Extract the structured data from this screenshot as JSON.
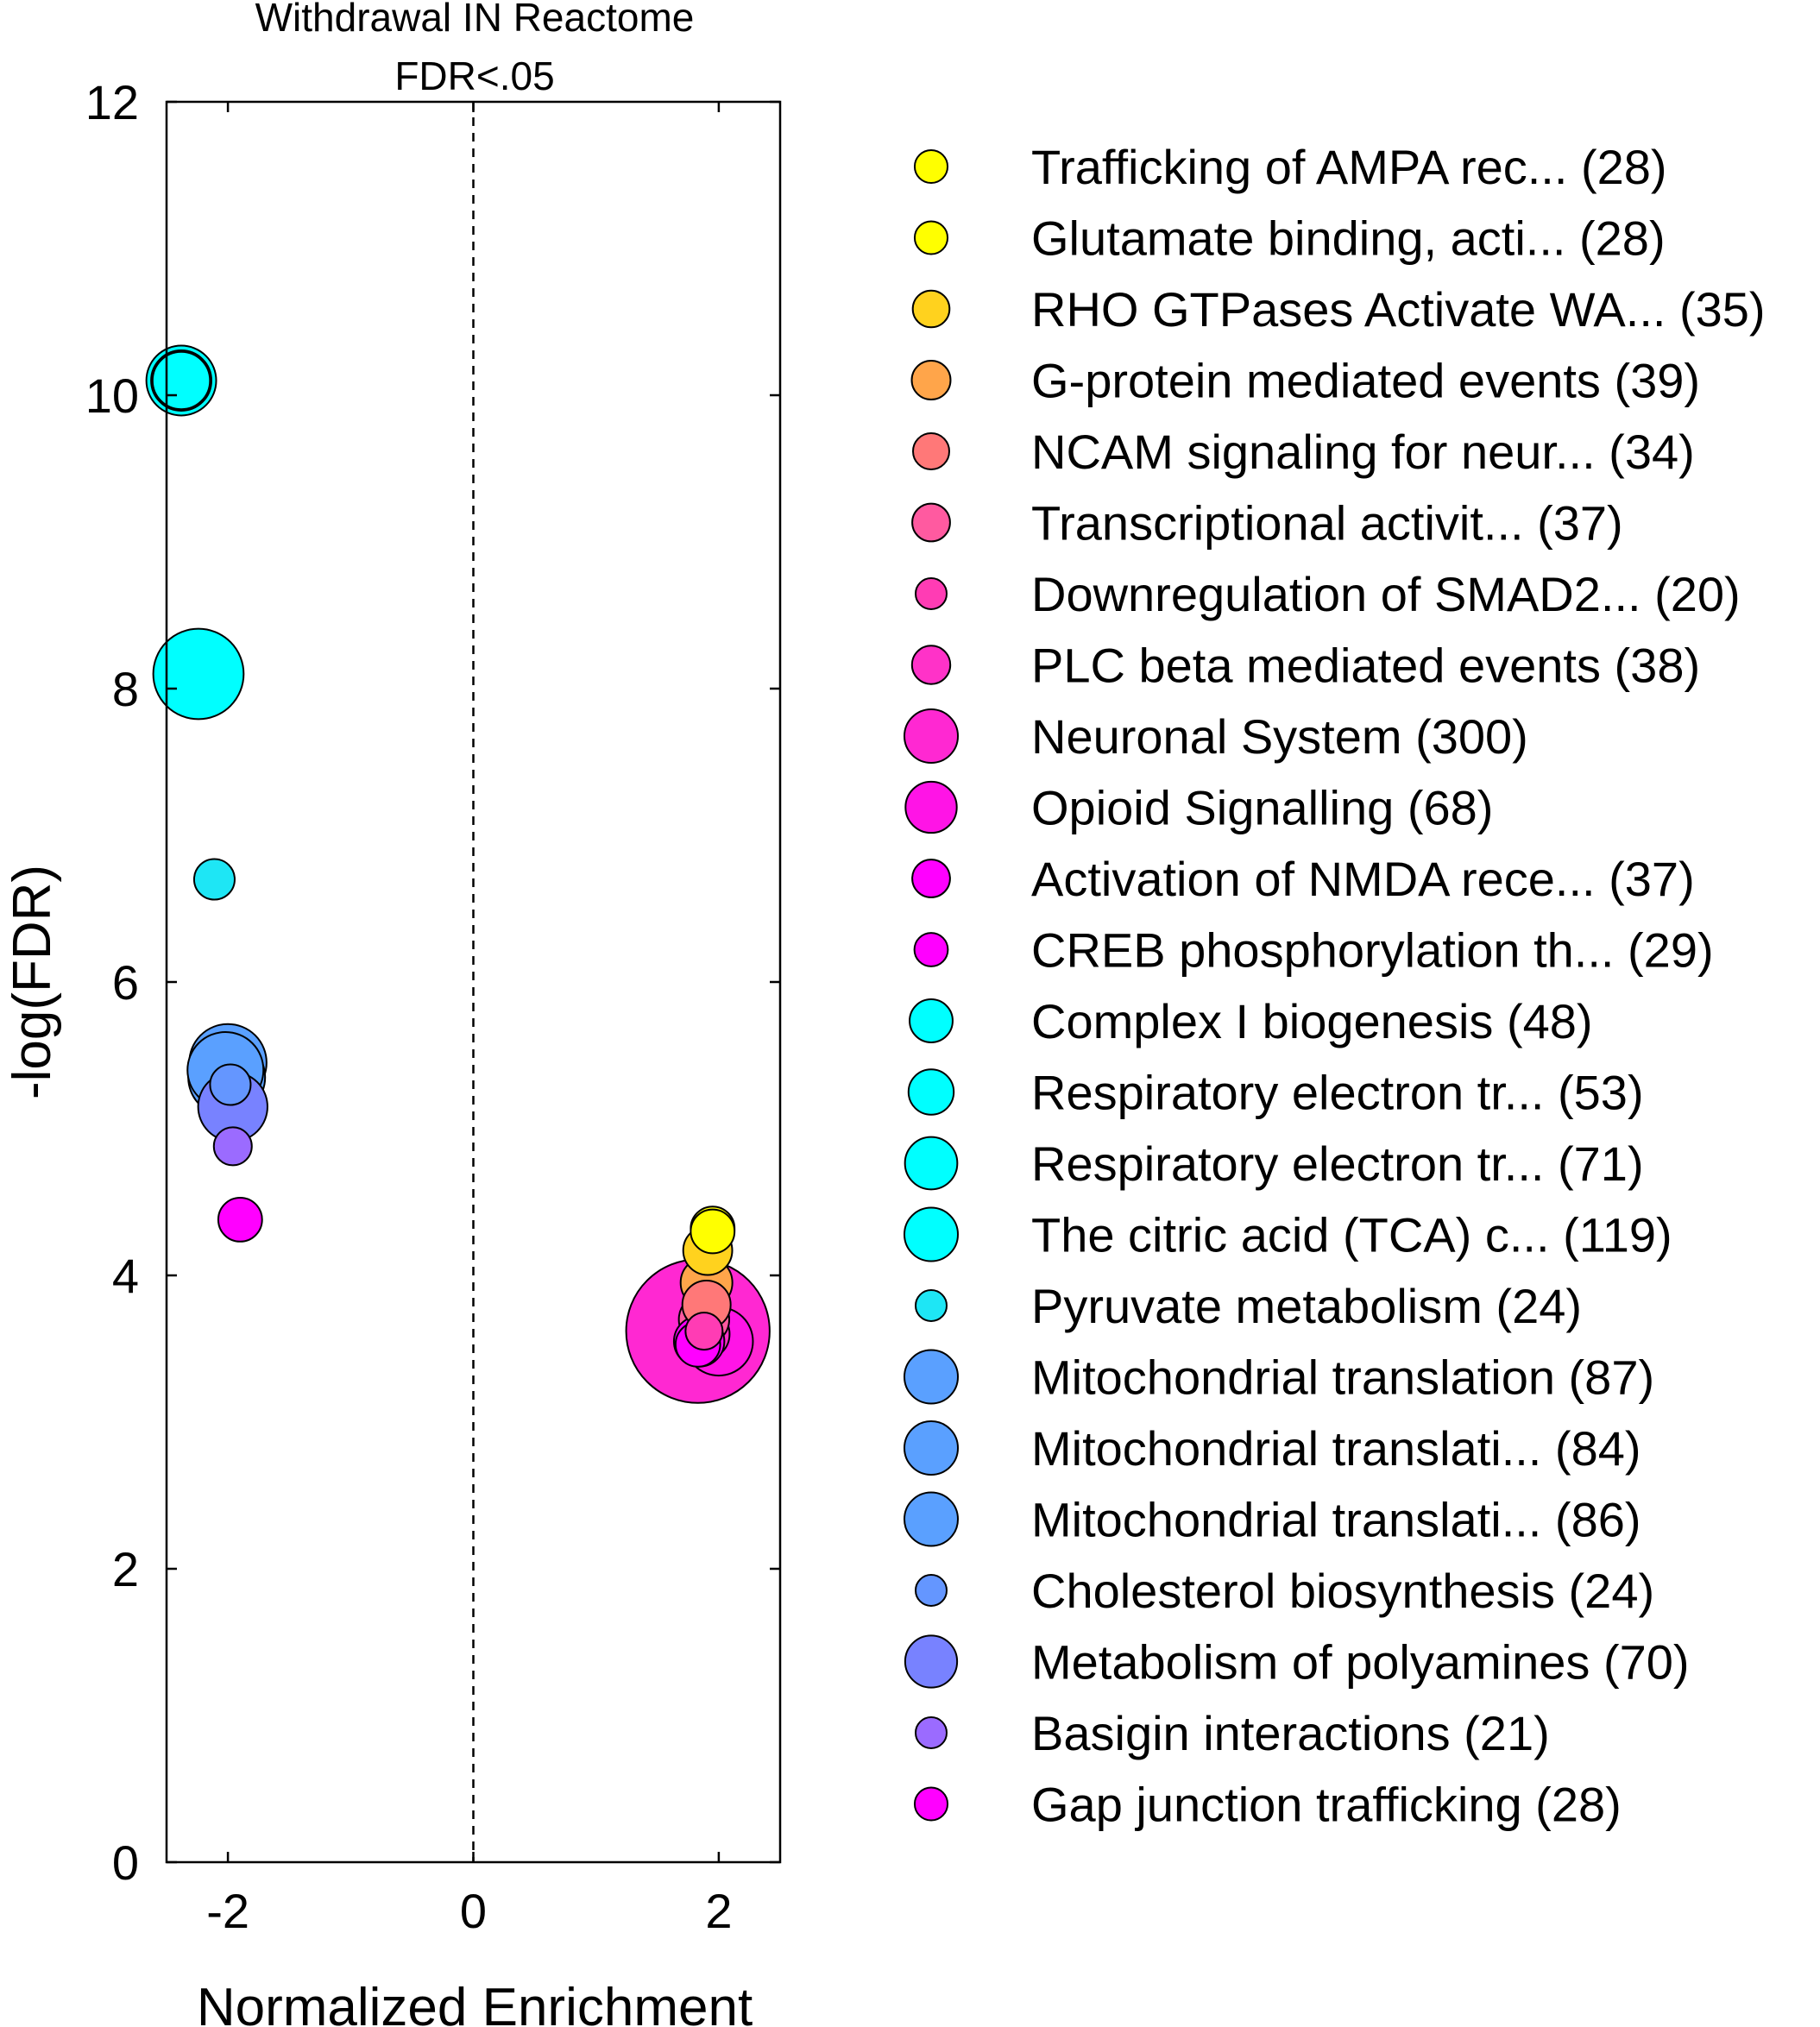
{
  "chart_data": {
    "type": "scatter",
    "title": "Withdrawal IN Reactome",
    "subtitle": "FDR<.05",
    "xlabel": "Normalized Enrichment",
    "ylabel": "-log(FDR)",
    "xlim": [
      -2.5,
      2.5
    ],
    "ylim": [
      0,
      12
    ],
    "xticks": [
      "-2",
      "0",
      "2"
    ],
    "yticks": [
      "0",
      "2",
      "4",
      "6",
      "8",
      "10",
      "12"
    ],
    "reference_line": {
      "x": 0,
      "style": "dashed"
    },
    "grid": false,
    "legend_position": "right",
    "series": [
      {
        "name": "Trafficking of AMPA rec... (28)",
        "color": "#ffff00",
        "size": 28,
        "x": 1.95,
        "y": 4.32
      },
      {
        "name": "Glutamate binding, acti... (28)",
        "color": "#ffff00",
        "size": 28,
        "x": 1.95,
        "y": 4.3
      },
      {
        "name": "RHO GTPases Activate WA... (35)",
        "color": "#ffd21e",
        "size": 35,
        "x": 1.91,
        "y": 4.17
      },
      {
        "name": "G-protein mediated events (39)",
        "color": "#ffa54a",
        "size": 39,
        "x": 1.9,
        "y": 3.95
      },
      {
        "name": "NCAM signaling for neur... (34)",
        "color": "#ff7878",
        "size": 34,
        "x": 1.9,
        "y": 3.8
      },
      {
        "name": "Transcriptional activit... (37)",
        "color": "#ff5aa0",
        "size": 37,
        "x": 1.88,
        "y": 3.7
      },
      {
        "name": "Downregulation of SMAD2... (20)",
        "color": "#ff3cb4",
        "size": 20,
        "x": 1.88,
        "y": 3.62
      },
      {
        "name": "PLC beta mediated events (38)",
        "color": "#ff32c8",
        "size": 38,
        "x": 1.88,
        "y": 3.6
      },
      {
        "name": "Neuronal System (300)",
        "color": "#ff28d2",
        "size": 300,
        "x": 1.83,
        "y": 3.62
      },
      {
        "name": "Opioid Signalling (68)",
        "color": "#ff14e6",
        "size": 68,
        "x": 2.0,
        "y": 3.55
      },
      {
        "name": "Activation of NMDA rece... (37)",
        "color": "#ff00ff",
        "size": 37,
        "x": 1.84,
        "y": 3.55
      },
      {
        "name": "CREB phosphorylation th... (29)",
        "color": "#ff00ff",
        "size": 29,
        "x": 1.83,
        "y": 3.53
      },
      {
        "name": "Complex I biogenesis (48)",
        "color": "#00ffff",
        "size": 48,
        "x": -2.38,
        "y": 10.1
      },
      {
        "name": "Respiratory electron tr... (53)",
        "color": "#00ffff",
        "size": 53,
        "x": -2.38,
        "y": 10.1
      },
      {
        "name": "Respiratory electron tr... (71)",
        "color": "#00ffff",
        "size": 71,
        "x": -2.38,
        "y": 10.1
      },
      {
        "name": "The citric acid (TCA) c... (119)",
        "color": "#00ffff",
        "size": 119,
        "x": -2.24,
        "y": 8.1
      },
      {
        "name": "Pyruvate metabolism (24)",
        "color": "#1ee6f5",
        "size": 24,
        "x": -2.11,
        "y": 6.7
      },
      {
        "name": "Mitochondrial translation (87)",
        "color": "#5aa0ff",
        "size": 87,
        "x": -2.0,
        "y": 5.45
      },
      {
        "name": "Mitochondrial translati... (84)",
        "color": "#5aa0ff",
        "size": 84,
        "x": -2.02,
        "y": 5.4
      },
      {
        "name": "Mitochondrial translati... (86)",
        "color": "#5aa0ff",
        "size": 86,
        "x": -2.01,
        "y": 5.35
      },
      {
        "name": "Cholesterol biosynthesis (24)",
        "color": "#6496ff",
        "size": 24,
        "x": -1.98,
        "y": 5.3
      },
      {
        "name": "Metabolism of polyamines (70)",
        "color": "#7882ff",
        "size": 70,
        "x": -1.96,
        "y": 5.15
      },
      {
        "name": "Basigin interactions (21)",
        "color": "#9b6bff",
        "size": 21,
        "x": -1.96,
        "y": 4.88
      },
      {
        "name": "Gap junction trafficking (28)",
        "color": "#ff00ff",
        "size": 28,
        "x": -1.9,
        "y": 4.38
      }
    ]
  }
}
